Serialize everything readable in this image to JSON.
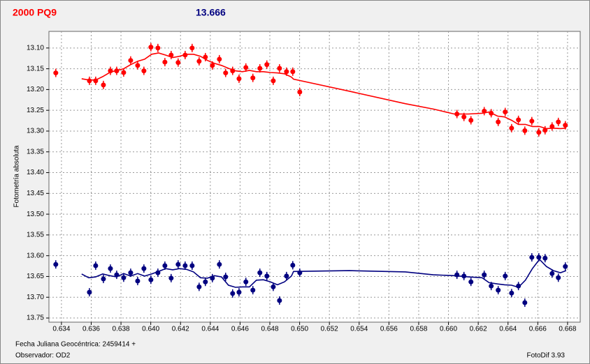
{
  "chart_data": {
    "type": "scatter",
    "title": "2000 PQ9",
    "subtitle": "13.666",
    "y_label": "Fotometría absoluta",
    "x_label": "Fecha Juliana Geocéntrica: 2459414 +",
    "observer": "Observador: OD2",
    "software": "FotoDif 3.93",
    "grid": true,
    "xlim": [
      0.63316,
      0.66885
    ],
    "ylim": [
      13.76,
      13.06
    ],
    "xticks": [
      0.634,
      0.636,
      0.638,
      {
        "value": 0.64,
        "label": "0.640"
      },
      0.642,
      0.644,
      0.646,
      0.648,
      {
        "value": 0.65,
        "label": "0.650"
      },
      0.652,
      0.654,
      0.656,
      0.658,
      {
        "value": 0.66,
        "label": "0.660"
      },
      0.662,
      0.664,
      0.666,
      0.668
    ],
    "yticks": [
      {
        "value": 13.1,
        "label": "13.10"
      },
      13.15,
      {
        "value": 13.2,
        "label": "13.20"
      },
      13.25,
      {
        "value": 13.3,
        "label": "13.30"
      },
      13.35,
      {
        "value": 13.4,
        "label": "13.40"
      },
      13.45,
      {
        "value": 13.5,
        "label": "13.50"
      },
      13.55,
      {
        "value": 13.6,
        "label": "13.60"
      },
      13.65,
      {
        "value": 13.7,
        "label": "13.70"
      },
      13.75
    ],
    "x": [
      0.63362,
      0.63588,
      0.6363,
      0.63682,
      0.63729,
      0.63771,
      0.63818,
      0.63865,
      0.63912,
      0.63954,
      0.64001,
      0.64048,
      0.64095,
      0.64137,
      0.64184,
      0.64231,
      0.64278,
      0.64325,
      0.64367,
      0.64414,
      0.64461,
      0.64503,
      0.6455,
      0.64593,
      0.64639,
      0.64686,
      0.64733,
      0.6478,
      0.64823,
      0.64865,
      0.64912,
      0.64954,
      0.65001,
      0.66057,
      0.66104,
      0.66151,
      0.6624,
      0.66287,
      0.66334,
      0.66381,
      0.66424,
      0.6647,
      0.66513,
      0.6656,
      0.66607,
      0.66649,
      0.66696,
      0.66738,
      0.66785
    ],
    "series": [
      {
        "color": "#ff0000",
        "style": "markers",
        "values": [
          13.16,
          13.179,
          13.179,
          13.189,
          13.155,
          13.155,
          13.159,
          13.13,
          13.142,
          13.155,
          13.098,
          13.1,
          13.134,
          13.117,
          13.135,
          13.117,
          13.1,
          13.132,
          13.122,
          13.142,
          13.127,
          13.16,
          13.155,
          13.174,
          13.147,
          13.172,
          13.149,
          13.14,
          13.179,
          13.149,
          13.157,
          13.157,
          13.206,
          13.259,
          13.266,
          13.274,
          13.252,
          13.257,
          13.278,
          13.254,
          13.293,
          13.273,
          13.299,
          13.276,
          13.303,
          13.298,
          13.289,
          13.278,
          13.286
        ]
      },
      {
        "color": "#000080",
        "style": "markers",
        "values": [
          13.621,
          13.688,
          13.624,
          13.656,
          13.631,
          13.646,
          13.653,
          13.641,
          13.661,
          13.631,
          13.658,
          13.641,
          13.624,
          13.654,
          13.621,
          13.624,
          13.624,
          13.675,
          13.663,
          13.654,
          13.621,
          13.651,
          13.691,
          13.688,
          13.663,
          13.683,
          13.641,
          13.649,
          13.675,
          13.708,
          13.649,
          13.623,
          13.641,
          13.646,
          13.649,
          13.663,
          13.646,
          13.673,
          13.683,
          13.649,
          13.69,
          13.673,
          13.713,
          13.604,
          13.604,
          13.606,
          13.643,
          13.653,
          13.626
        ]
      },
      {
        "color": "#ff0000",
        "style": "line",
        "x": [
          0.63536,
          0.63583,
          0.6363,
          0.63677,
          0.63724,
          0.63771,
          0.63818,
          0.63865,
          0.63912,
          0.63959,
          0.64006,
          0.64053,
          0.641,
          0.64147,
          0.64193,
          0.6424,
          0.64287,
          0.64334,
          0.64381,
          0.64428,
          0.64475,
          0.64522,
          0.64569,
          0.64616,
          0.64663,
          0.6471,
          0.64757,
          0.64804,
          0.64851,
          0.64898,
          0.64945,
          0.64959,
          0.65334,
          0.6571,
          0.65898,
          0.66039,
          0.66133,
          0.66226,
          0.66273,
          0.6633,
          0.66377,
          0.66424,
          0.6647,
          0.66517,
          0.66564,
          0.66611,
          0.66658,
          0.66705,
          0.66752,
          0.6679
        ],
        "values": [
          13.174,
          13.177,
          13.177,
          13.169,
          13.159,
          13.154,
          13.15,
          13.14,
          13.132,
          13.127,
          13.115,
          13.112,
          13.117,
          13.123,
          13.12,
          13.115,
          13.115,
          13.12,
          13.13,
          13.137,
          13.142,
          13.149,
          13.155,
          13.157,
          13.154,
          13.157,
          13.157,
          13.159,
          13.16,
          13.162,
          13.17,
          13.175,
          13.204,
          13.234,
          13.247,
          13.259,
          13.259,
          13.257,
          13.254,
          13.264,
          13.266,
          13.274,
          13.284,
          13.284,
          13.289,
          13.289,
          13.294,
          13.293,
          13.294,
          13.293
        ]
      },
      {
        "color": "#000080",
        "style": "line",
        "x": [
          0.63536,
          0.63583,
          0.6363,
          0.63677,
          0.63724,
          0.63771,
          0.63818,
          0.63865,
          0.63912,
          0.63959,
          0.64006,
          0.64053,
          0.641,
          0.64147,
          0.64193,
          0.6424,
          0.64287,
          0.64334,
          0.64381,
          0.64428,
          0.64475,
          0.64522,
          0.64569,
          0.64616,
          0.64663,
          0.6471,
          0.64757,
          0.64804,
          0.64851,
          0.64898,
          0.64945,
          0.64959,
          0.65334,
          0.6571,
          0.65898,
          0.66039,
          0.66133,
          0.66226,
          0.66273,
          0.6633,
          0.66377,
          0.66424,
          0.6647,
          0.66517,
          0.66564,
          0.66611,
          0.66658,
          0.66705,
          0.66752,
          0.6679
        ],
        "values": [
          13.644,
          13.653,
          13.651,
          13.644,
          13.648,
          13.651,
          13.643,
          13.649,
          13.643,
          13.649,
          13.644,
          13.638,
          13.631,
          13.634,
          13.631,
          13.633,
          13.639,
          13.653,
          13.654,
          13.648,
          13.651,
          13.671,
          13.676,
          13.675,
          13.675,
          13.659,
          13.658,
          13.663,
          13.67,
          13.663,
          13.649,
          13.638,
          13.636,
          13.639,
          13.646,
          13.648,
          13.651,
          13.653,
          13.665,
          13.668,
          13.67,
          13.671,
          13.676,
          13.659,
          13.631,
          13.609,
          13.626,
          13.636,
          13.641,
          13.636
        ]
      }
    ]
  }
}
